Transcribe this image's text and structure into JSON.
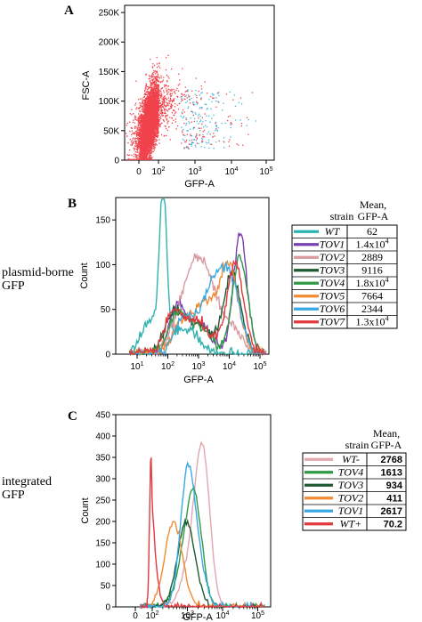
{
  "side_labels": {
    "plasmid": [
      "plasmid-borne",
      "GFP"
    ],
    "integrated": [
      "integrated",
      "GFP"
    ]
  },
  "chart_data": [
    {
      "panel": "A",
      "type": "scatter",
      "xlabel": "GFP-A",
      "ylabel": "FSC-A",
      "x_scale": "log",
      "x_ticks": [
        "0",
        "10^2",
        "10^3",
        "10^4",
        "10^5"
      ],
      "y_ticks": [
        "0",
        "50K",
        "100K",
        "150K",
        "200K",
        "250K"
      ],
      "ylim": [
        0,
        262144
      ],
      "series": [
        {
          "color": "#f0434b",
          "note": "dense population, GFP ~0–10^3, FSC ~10K–160K"
        },
        {
          "color": "#3ab4e0",
          "note": "sparse population, GFP ~10^3–10^5"
        }
      ]
    },
    {
      "panel": "B",
      "type": "line",
      "xlabel": "GFP-A",
      "ylabel": "Count",
      "x_scale": "log",
      "x_ticks": [
        "10^1",
        "10^2",
        "10^3",
        "10^4",
        "10^5"
      ],
      "y_ticks": [
        "0",
        "50",
        "100",
        "150"
      ],
      "ylim": [
        0,
        175
      ],
      "legend": {
        "header_strain": "strain",
        "header_mean": [
          "Mean,",
          "GFP-A"
        ],
        "rows": [
          {
            "strain": "WT",
            "mean": "62",
            "color": "#30b2b0"
          },
          {
            "strain": "TOV1",
            "mean": "1.4x10^4",
            "color": "#7a3fb0"
          },
          {
            "strain": "TOV2",
            "mean": "2889",
            "color": "#d89aa0"
          },
          {
            "strain": "TOV3",
            "mean": "9116",
            "color": "#1f5a33"
          },
          {
            "strain": "TOV4",
            "mean": "1.8x10^4",
            "color": "#2e9a45"
          },
          {
            "strain": "TOV5",
            "mean": "7664",
            "color": "#f08b33"
          },
          {
            "strain": "TOV6",
            "mean": "2344",
            "color": "#3aa9e3"
          },
          {
            "strain": "TOV7",
            "mean": "1.3x10^4",
            "color": "#e0393e"
          }
        ]
      }
    },
    {
      "panel": "C",
      "type": "line",
      "xlabel": "GFP-A",
      "ylabel": "Count",
      "x_scale": "log",
      "x_ticks": [
        "0",
        "10^2",
        "10^3",
        "10^4",
        "10^5"
      ],
      "y_ticks": [
        "0",
        "50",
        "100",
        "150",
        "200",
        "250",
        "300",
        "350",
        "400",
        "450"
      ],
      "ylim": [
        0,
        450
      ],
      "legend": {
        "header_strain": "strain",
        "header_mean": [
          "Mean,",
          "GFP-A"
        ],
        "rows": [
          {
            "strain": "WT-",
            "mean": "2768",
            "color": "#e0a8ae"
          },
          {
            "strain": "TOV4",
            "mean": "1613",
            "color": "#2e9a45"
          },
          {
            "strain": "TOV3",
            "mean": "934",
            "color": "#1f5a33"
          },
          {
            "strain": "TOV2",
            "mean": "411",
            "color": "#f08b33"
          },
          {
            "strain": "TOV1",
            "mean": "2617",
            "color": "#3aa9e3"
          },
          {
            "strain": "WT+",
            "mean": "70.2",
            "color": "#e0393e"
          }
        ]
      }
    }
  ]
}
